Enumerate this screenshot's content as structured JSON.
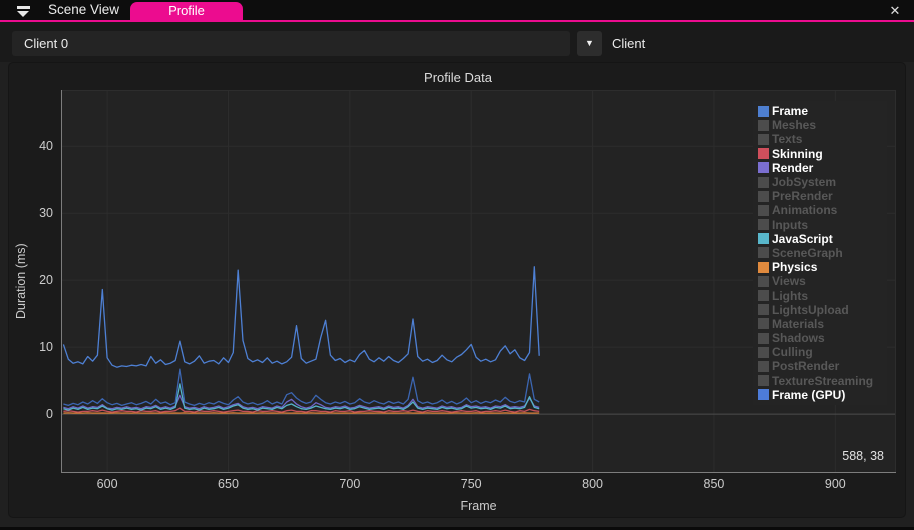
{
  "accent": {
    "magenta": "#ec0c8f"
  },
  "window": {
    "close_glyph": "✕"
  },
  "tabs": {
    "scene_view": "Scene View",
    "profile": "Profile"
  },
  "toolbar": {
    "client_value": "Client 0",
    "dropdown_glyph": "▼",
    "client_caption": "Client"
  },
  "panel": {
    "title": "Profile Data",
    "cursor_readout": "588, 38"
  },
  "legend": [
    {
      "label": "Frame",
      "color": "#4e7fd0",
      "active": true
    },
    {
      "label": "Meshes",
      "color": "#4c4c4c",
      "active": false
    },
    {
      "label": "Texts",
      "color": "#4c4c4c",
      "active": false
    },
    {
      "label": "Skinning",
      "color": "#cf4f5c",
      "active": true
    },
    {
      "label": "Render",
      "color": "#7b6fd0",
      "active": true
    },
    {
      "label": "JobSystem",
      "color": "#4c4c4c",
      "active": false
    },
    {
      "label": "PreRender",
      "color": "#4c4c4c",
      "active": false
    },
    {
      "label": "Animations",
      "color": "#4c4c4c",
      "active": false
    },
    {
      "label": "Inputs",
      "color": "#4c4c4c",
      "active": false
    },
    {
      "label": "JavaScript",
      "color": "#59b7cb",
      "active": true
    },
    {
      "label": "SceneGraph",
      "color": "#4c4c4c",
      "active": false
    },
    {
      "label": "Physics",
      "color": "#e08a3e",
      "active": true
    },
    {
      "label": "Views",
      "color": "#4c4c4c",
      "active": false
    },
    {
      "label": "Lights",
      "color": "#4c4c4c",
      "active": false
    },
    {
      "label": "LightsUpload",
      "color": "#4c4c4c",
      "active": false
    },
    {
      "label": "Materials",
      "color": "#4c4c4c",
      "active": false
    },
    {
      "label": "Shadows",
      "color": "#4c4c4c",
      "active": false
    },
    {
      "label": "Culling",
      "color": "#4c4c4c",
      "active": false
    },
    {
      "label": "PostRender",
      "color": "#4c4c4c",
      "active": false
    },
    {
      "label": "TextureStreaming",
      "color": "#4c4c4c",
      "active": false
    },
    {
      "label": "Frame (GPU)",
      "color": "#4d7cd9",
      "active": true
    }
  ],
  "chart_data": {
    "type": "line",
    "title": "Profile Data",
    "xlabel": "Frame",
    "ylabel": "Duration (ms)",
    "xlim": [
      581,
      925
    ],
    "ylim": [
      -8.8,
      48.4
    ],
    "xticks": [
      600,
      650,
      700,
      750,
      800,
      850,
      900
    ],
    "yticks": [
      0,
      10,
      20,
      30,
      40
    ],
    "grid": true,
    "legend_position": "upper-right",
    "x_start": 582,
    "x_step": 2,
    "series": [
      {
        "name": "Physics",
        "color": "#dd8038",
        "values": [
          0.15,
          0.17,
          0.14,
          0.16,
          0.15,
          0.18,
          0.15,
          0.14,
          0.16,
          0.15,
          0.15,
          0.17,
          0.14,
          0.16,
          0.15,
          0.18,
          0.15,
          0.14,
          0.16,
          0.15,
          0.15,
          0.17,
          0.14,
          0.16,
          0.15,
          0.18,
          0.15,
          0.14,
          0.16,
          0.15,
          0.15,
          0.17,
          0.14,
          0.16,
          0.15,
          0.18,
          0.15,
          0.14,
          0.16,
          0.15,
          0.15,
          0.17,
          0.14,
          0.16,
          0.15,
          0.18,
          0.15,
          0.14,
          0.16,
          0.15,
          0.15,
          0.17,
          0.14,
          0.16,
          0.15,
          0.18,
          0.15,
          0.14,
          0.16,
          0.15,
          0.15,
          0.17,
          0.14,
          0.16,
          0.15,
          0.18,
          0.15,
          0.14,
          0.16,
          0.15,
          0.15,
          0.17,
          0.14,
          0.16,
          0.15,
          0.18,
          0.15,
          0.14,
          0.16,
          0.15,
          0.15,
          0.17,
          0.14,
          0.16,
          0.15,
          0.18,
          0.15,
          0.14,
          0.16,
          0.15,
          0.15,
          0.17,
          0.14,
          0.16,
          0.15,
          0.18,
          0.15,
          0.14,
          0.16
        ]
      },
      {
        "name": "Skinning",
        "color": "#c4505a",
        "values": [
          0.4,
          0.5,
          0.4,
          0.3,
          0.4,
          0.4,
          0.5,
          0.4,
          0.6,
          0.4,
          0.3,
          0.4,
          0.5,
          0.4,
          0.4,
          0.3,
          0.5,
          0.4,
          0.4,
          0.5,
          0.3,
          0.4,
          0.4,
          0.5,
          0.9,
          0.4,
          0.4,
          0.3,
          0.5,
          0.4,
          0.4,
          0.5,
          0.4,
          0.3,
          0.4,
          0.5,
          0.6,
          0.4,
          0.4,
          0.3,
          0.5,
          0.4,
          0.4,
          0.5,
          0.4,
          0.3,
          0.5,
          0.6,
          0.4,
          0.4,
          0.3,
          0.5,
          0.5,
          0.4,
          0.4,
          0.3,
          0.5,
          0.4,
          0.4,
          0.5,
          0.3,
          0.4,
          0.4,
          0.5,
          0.4,
          0.4,
          0.3,
          0.5,
          0.4,
          0.4,
          0.5,
          0.4,
          0.6,
          0.4,
          0.3,
          0.5,
          0.4,
          0.4,
          0.5,
          0.4,
          0.3,
          0.4,
          0.5,
          0.4,
          0.4,
          0.5,
          0.3,
          0.4,
          0.4,
          0.5,
          0.4,
          0.6,
          0.4,
          0.3,
          0.5,
          0.4,
          0.7,
          0.5,
          0.4
        ]
      },
      {
        "name": "Render",
        "color": "#6f68c8",
        "values": [
          1.0,
          0.8,
          1.1,
          0.9,
          1.2,
          0.9,
          1.1,
          1.0,
          1.4,
          0.9,
          0.8,
          1.0,
          0.9,
          1.1,
          0.9,
          1.0,
          0.8,
          1.1,
          1.0,
          1.3,
          0.9,
          1.1,
          0.9,
          1.2,
          2.8,
          1.1,
          0.9,
          1.0,
          0.8,
          1.1,
          0.9,
          1.0,
          1.2,
          0.9,
          1.1,
          1.4,
          1.6,
          1.1,
          0.9,
          1.0,
          0.8,
          1.1,
          1.0,
          0.9,
          1.2,
          1.0,
          1.8,
          2.2,
          1.5,
          1.1,
          0.9,
          1.1,
          1.7,
          1.4,
          1.0,
          0.9,
          1.1,
          1.0,
          1.2,
          0.9,
          1.0,
          1.3,
          1.1,
          0.9,
          1.0,
          1.1,
          0.9,
          1.2,
          1.0,
          1.1,
          0.9,
          1.3,
          2.2,
          1.1,
          0.9,
          1.1,
          1.0,
          0.9,
          1.2,
          1.0,
          1.1,
          0.9,
          1.0,
          1.4,
          1.1,
          1.2,
          1.0,
          1.1,
          0.9,
          1.2,
          1.1,
          1.4,
          1.0,
          1.1,
          1.0,
          1.2,
          2.4,
          1.2,
          1.0
        ]
      },
      {
        "name": "JavaScript",
        "color": "#55b4c8",
        "values": [
          0.8,
          0.6,
          0.9,
          0.7,
          1.0,
          0.7,
          0.9,
          0.8,
          1.2,
          0.8,
          0.6,
          0.8,
          0.7,
          0.9,
          0.7,
          0.8,
          0.6,
          0.9,
          0.8,
          1.1,
          0.7,
          0.9,
          0.7,
          1.0,
          4.5,
          0.9,
          0.7,
          0.8,
          0.6,
          0.9,
          0.7,
          0.8,
          1.0,
          0.7,
          0.9,
          1.2,
          1.4,
          0.9,
          0.7,
          0.8,
          0.6,
          0.9,
          0.8,
          0.7,
          1.0,
          0.8,
          1.3,
          1.5,
          1.1,
          0.8,
          0.7,
          0.9,
          1.2,
          1.0,
          0.8,
          0.7,
          0.9,
          0.8,
          1.0,
          0.7,
          0.8,
          1.1,
          0.9,
          0.7,
          0.8,
          0.9,
          0.7,
          1.0,
          0.8,
          0.9,
          0.7,
          1.1,
          1.8,
          0.9,
          0.7,
          0.9,
          0.8,
          0.7,
          1.0,
          0.8,
          0.9,
          0.7,
          0.8,
          1.2,
          0.9,
          1.0,
          0.8,
          0.9,
          0.7,
          1.0,
          0.9,
          1.2,
          0.8,
          0.9,
          0.8,
          1.0,
          2.6,
          1.0,
          0.8
        ]
      },
      {
        "name": "Frame (GPU)",
        "color": "#3c66b2",
        "values": [
          1.5,
          1.3,
          1.6,
          1.4,
          1.8,
          1.5,
          2.0,
          1.6,
          2.3,
          1.7,
          1.4,
          1.6,
          1.3,
          1.5,
          1.7,
          1.4,
          1.6,
          1.9,
          1.5,
          2.2,
          1.6,
          1.8,
          1.4,
          1.7,
          6.7,
          1.8,
          1.5,
          1.3,
          1.6,
          1.4,
          1.7,
          1.5,
          1.9,
          1.6,
          1.4,
          2.1,
          2.6,
          1.8,
          1.5,
          1.7,
          1.4,
          1.6,
          2.0,
          1.5,
          1.8,
          1.5,
          2.9,
          3.2,
          2.4,
          1.9,
          1.6,
          1.8,
          2.8,
          2.2,
          1.7,
          1.5,
          1.8,
          1.6,
          1.9,
          1.5,
          1.7,
          2.3,
          1.8,
          1.6,
          2.0,
          1.7,
          1.5,
          1.9,
          1.6,
          1.8,
          1.5,
          2.2,
          5.5,
          2.0,
          1.6,
          1.8,
          1.5,
          1.7,
          2.1,
          1.6,
          1.9,
          1.5,
          1.8,
          2.4,
          1.7,
          2.0,
          1.6,
          1.9,
          1.7,
          2.1,
          1.8,
          2.5,
          1.9,
          1.7,
          2.0,
          1.8,
          6.0,
          2.2,
          1.8
        ]
      },
      {
        "name": "Frame",
        "color": "#4e80d4",
        "values": [
          10.4,
          8.2,
          7.6,
          7.8,
          7.5,
          8.6,
          7.9,
          8.8,
          18.6,
          8.4,
          7.3,
          7.0,
          7.2,
          7.1,
          7.3,
          7.2,
          7.4,
          7.2,
          8.6,
          7.6,
          8.1,
          7.4,
          7.6,
          8.0,
          10.9,
          7.8,
          7.5,
          7.9,
          8.7,
          7.6,
          7.9,
          8.0,
          7.5,
          8.4,
          7.7,
          9.2,
          21.5,
          11.0,
          8.3,
          7.8,
          8.1,
          7.7,
          8.4,
          7.6,
          7.9,
          7.5,
          7.8,
          8.5,
          13.2,
          8.3,
          7.6,
          7.9,
          8.2,
          11.4,
          14.0,
          8.8,
          8.0,
          8.3,
          7.7,
          8.1,
          7.8,
          8.9,
          9.5,
          8.2,
          7.8,
          8.4,
          7.9,
          8.6,
          8.0,
          7.7,
          8.3,
          9.0,
          14.2,
          8.6,
          7.9,
          8.2,
          7.7,
          8.0,
          8.8,
          8.1,
          7.8,
          8.5,
          8.9,
          9.6,
          10.4,
          8.5,
          7.9,
          8.2,
          7.8,
          8.1,
          9.4,
          10.2,
          9.0,
          9.6,
          8.4,
          8.0,
          9.2,
          22.0,
          8.7
        ]
      }
    ]
  }
}
